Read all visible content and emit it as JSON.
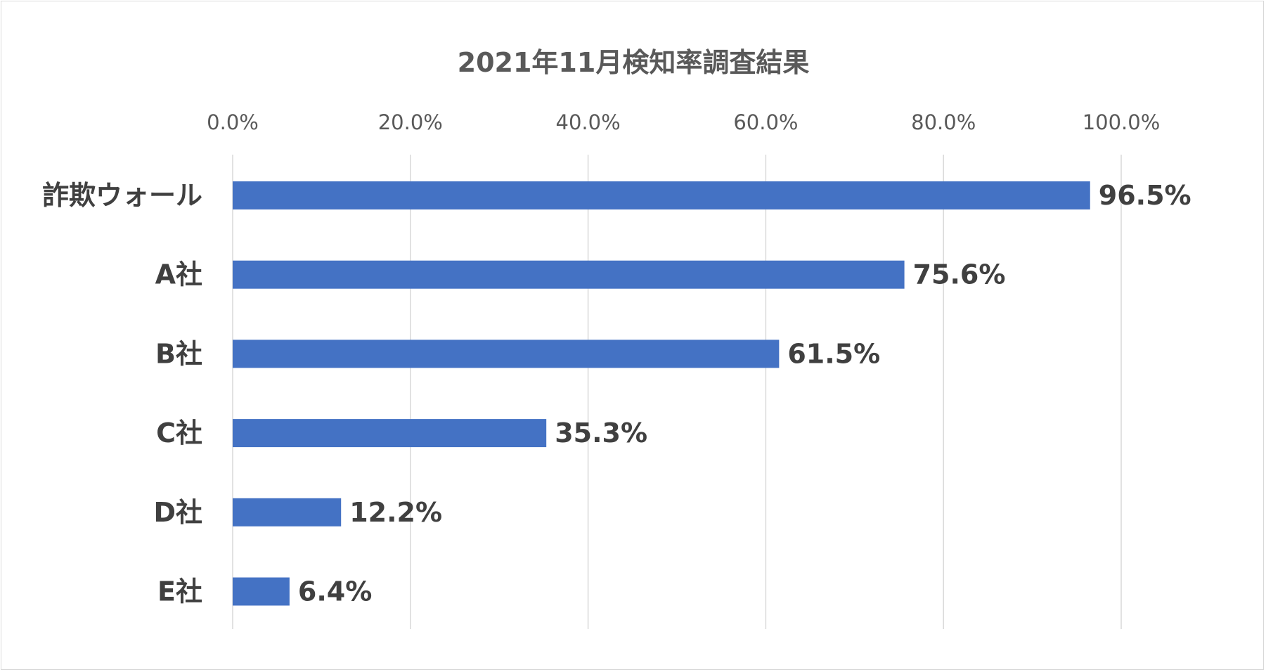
{
  "chart_data": {
    "type": "bar",
    "orientation": "horizontal",
    "title": "2021年11月検知率調査結果",
    "categories": [
      "詐欺ウォール",
      "A社",
      "B社",
      "C社",
      "D社",
      "E社"
    ],
    "values": [
      96.5,
      75.6,
      61.5,
      35.3,
      12.2,
      6.4
    ],
    "value_labels": [
      "96.5%",
      "75.6%",
      "61.5%",
      "35.3%",
      "12.2%",
      "6.4%"
    ],
    "x_ticks": [
      0,
      20,
      40,
      60,
      80,
      100
    ],
    "x_tick_labels": [
      "0.0%",
      "20.0%",
      "40.0%",
      "60.0%",
      "80.0%",
      "100.0%"
    ],
    "xlim": [
      0,
      100
    ],
    "x_axis_position": "top",
    "grid": true,
    "legend": "none",
    "bar_color": "#4472c4",
    "grid_color": "#d9d9d9",
    "text_color": "#404040",
    "tick_color": "#595959"
  }
}
